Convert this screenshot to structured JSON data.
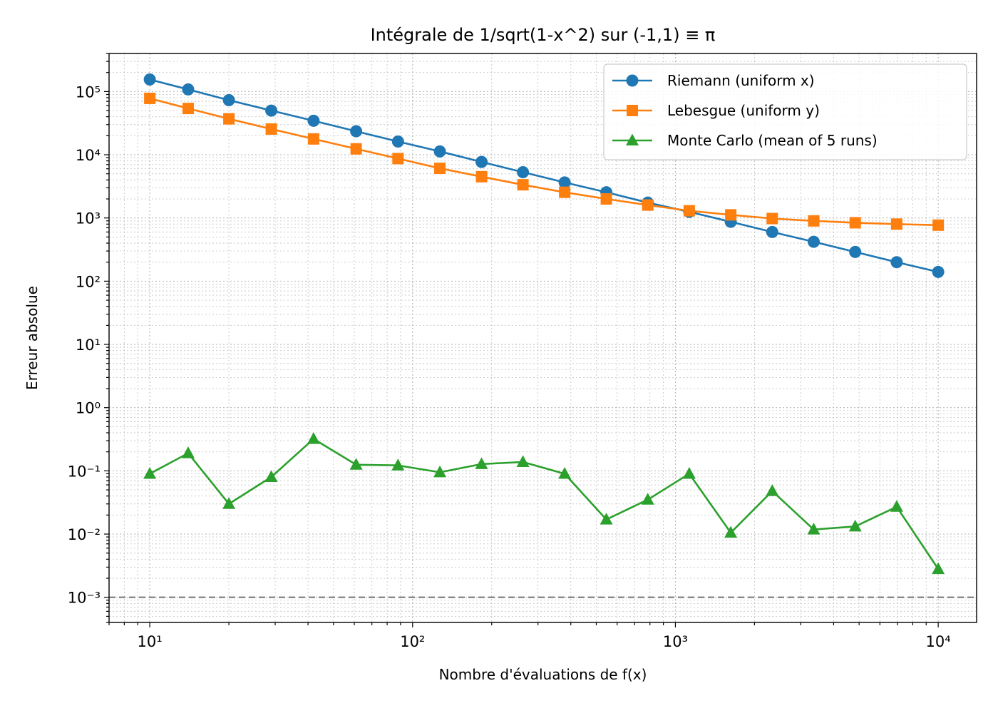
{
  "chart_data": {
    "type": "line",
    "title": "Intégrale de 1/sqrt(1-x^2) sur (-1,1) ≡ π",
    "xlabel": "Nombre d'évaluations de f(x)",
    "ylabel": "Erreur absolue",
    "xscale": "log",
    "yscale": "log",
    "xlim": [
      7,
      14000
    ],
    "ylim": [
      0.0004,
      400000
    ],
    "xticks": [
      {
        "value": 10,
        "label": "10¹"
      },
      {
        "value": 100,
        "label": "10²"
      },
      {
        "value": 1000,
        "label": "10³"
      },
      {
        "value": 10000,
        "label": "10⁴"
      }
    ],
    "yticks": [
      {
        "value": 0.001,
        "label": "10⁻³"
      },
      {
        "value": 0.01,
        "label": "10⁻²"
      },
      {
        "value": 0.1,
        "label": "10⁻¹"
      },
      {
        "value": 1,
        "label": "10⁰"
      },
      {
        "value": 10,
        "label": "10¹"
      },
      {
        "value": 100,
        "label": "10²"
      },
      {
        "value": 1000,
        "label": "10³"
      },
      {
        "value": 10000,
        "label": "10⁴"
      },
      {
        "value": 100000,
        "label": "10⁵"
      }
    ],
    "grid": true,
    "legend_position": "top-right",
    "x": [
      10,
      14,
      20,
      29,
      42,
      61,
      88,
      127,
      183,
      263,
      379,
      546,
      785,
      1129,
      1624,
      2336,
      3360,
      4833,
      6952,
      10000
    ],
    "series": [
      {
        "name": "Riemann (uniform x)",
        "color": "#1f77b4",
        "marker": "circle",
        "values": [
          155000,
          108000,
          73000,
          50000,
          34500,
          23500,
          16200,
          11300,
          7700,
          5300,
          3650,
          2550,
          1750,
          1250,
          870,
          600,
          420,
          290,
          200,
          140
        ]
      },
      {
        "name": "Lebesgue (uniform y)",
        "color": "#ff7f0e",
        "marker": "square",
        "values": [
          78000,
          54000,
          37000,
          25500,
          17800,
          12400,
          8700,
          6100,
          4500,
          3350,
          2550,
          2000,
          1600,
          1300,
          1120,
          980,
          900,
          840,
          800,
          770
        ]
      },
      {
        "name": "Monte Carlo (mean of 5 runs)",
        "color": "#2ca02c",
        "marker": "triangle",
        "values": [
          0.09,
          0.19,
          0.03,
          0.08,
          0.32,
          0.125,
          0.122,
          0.095,
          0.128,
          0.138,
          0.09,
          0.017,
          0.035,
          0.09,
          0.0105,
          0.048,
          0.0118,
          0.0132,
          0.027,
          0.0028
        ]
      }
    ],
    "reference_line": {
      "y": 0.001,
      "style": "dashed",
      "color": "#808080"
    }
  }
}
